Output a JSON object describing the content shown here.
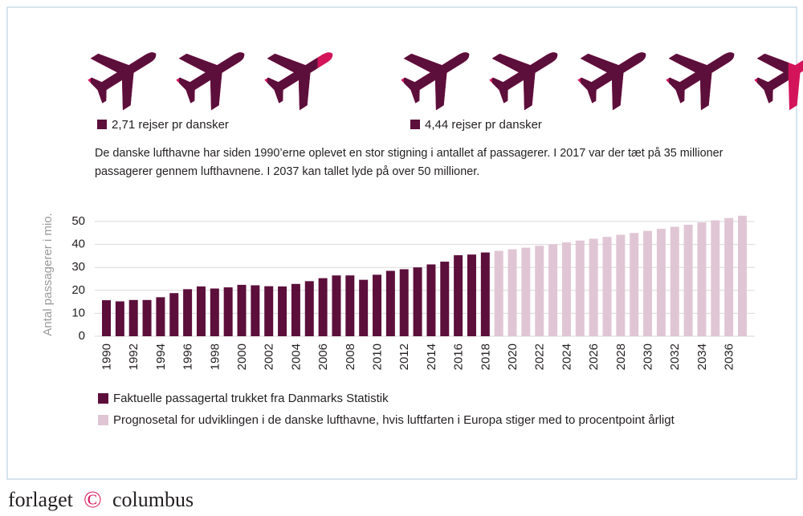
{
  "pictograms": [
    {
      "value": 2.71,
      "label": "2,71 rejser pr dansker"
    },
    {
      "value": 4.44,
      "label": "4,44 rejser pr dansker"
    }
  ],
  "description": "De danske lufthavne har siden 1990’erne oplevet en stor stigning i antallet af passagerer. I 2017 var der tæt på 35 millioner passagerer gennem lufthavnene. I 2037 kan tallet lyde på over 50 millioner.",
  "chart_data": {
    "type": "bar",
    "ylabel": "Antal passagerer i mio.",
    "categories": [
      "1990",
      null,
      "1992",
      null,
      "1994",
      null,
      "1996",
      null,
      "1998",
      null,
      "2000",
      null,
      "2002",
      null,
      "2004",
      null,
      "2006",
      null,
      "2008",
      null,
      "2010",
      null,
      "2012",
      null,
      "2014",
      null,
      "2016",
      null,
      "2018",
      null,
      "2020",
      null,
      "2022",
      null,
      "2024",
      null,
      "2026",
      null,
      "2028",
      null,
      "2030",
      null,
      "2032",
      null,
      "2034",
      null,
      "2036",
      null
    ],
    "series": [
      {
        "name": "Faktuelle passagertal trukket fra Danmarks Statistik",
        "color": "#5c0f3b",
        "values": [
          15.7,
          15.2,
          15.8,
          15.8,
          17,
          18.8,
          20.5,
          21.7,
          20.8,
          21.3,
          22.4,
          22.2,
          21.8,
          21.7,
          22.8,
          24,
          25.3,
          26.5,
          26.5,
          24.6,
          26.8,
          28.5,
          29.2,
          30,
          31.3,
          32.5,
          35.3,
          35.6,
          36.5,
          null,
          null,
          null,
          null,
          null,
          null,
          null,
          null,
          null,
          null,
          null,
          null,
          null,
          null,
          null,
          null,
          null,
          null,
          null
        ]
      },
      {
        "name": "Prognosetal for udviklingen i de danske lufthavne, hvis luftfarten i Europa stiger med to procentpoint årligt",
        "color": "#e0c6d4",
        "values": [
          null,
          null,
          null,
          null,
          null,
          null,
          null,
          null,
          null,
          null,
          null,
          null,
          null,
          null,
          null,
          null,
          null,
          null,
          null,
          null,
          null,
          null,
          null,
          null,
          null,
          null,
          null,
          null,
          null,
          37.2,
          37.9,
          38.6,
          39.4,
          40.1,
          40.9,
          41.7,
          42.5,
          43.3,
          44.2,
          45,
          45.9,
          46.8,
          47.7,
          48.6,
          49.6,
          50.5,
          51.5,
          52.5
        ]
      }
    ],
    "ylim": [
      0,
      50
    ],
    "yticks": [
      0,
      10,
      20,
      30,
      40,
      50
    ],
    "grid": true
  },
  "footer": {
    "left": "forlaget",
    "mark": "©",
    "right": "columbus"
  }
}
